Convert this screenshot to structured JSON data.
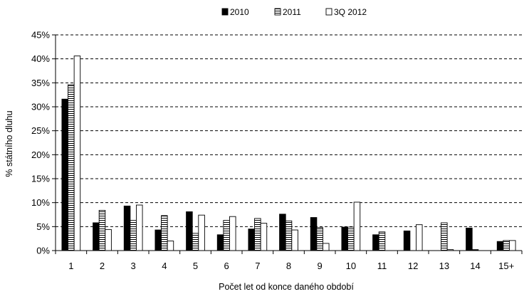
{
  "chart_data": {
    "type": "bar",
    "title": "",
    "xlabel": "Počet let od konce daného období",
    "ylabel": "% státního dluhu",
    "ylim": [
      0,
      45
    ],
    "y_ticks": [
      "0%",
      "5%",
      "10%",
      "15%",
      "20%",
      "25%",
      "30%",
      "35%",
      "40%",
      "45%"
    ],
    "grid": true,
    "legend_position": "top",
    "categories": [
      "1",
      "2",
      "3",
      "4",
      "5",
      "6",
      "7",
      "8",
      "9",
      "10",
      "11",
      "12",
      "13",
      "14",
      "15+"
    ],
    "series": [
      {
        "name": "2010",
        "pattern": "solid-black",
        "values": [
          31.6,
          5.8,
          9.3,
          4.3,
          8.1,
          3.3,
          4.5,
          7.6,
          6.9,
          4.9,
          3.3,
          4.1,
          0,
          4.7,
          1.9
        ]
      },
      {
        "name": "2011",
        "pattern": "horizontal-stripes",
        "values": [
          34.6,
          8.4,
          6.3,
          7.3,
          3.6,
          6.3,
          6.7,
          6.2,
          4.8,
          4.9,
          3.9,
          0,
          5.8,
          0.2,
          2.1
        ]
      },
      {
        "name": "3Q 2012",
        "pattern": "white",
        "values": [
          40.6,
          4.4,
          9.5,
          2.0,
          7.4,
          7.1,
          5.7,
          4.3,
          1.5,
          10.1,
          0,
          5.4,
          0.2,
          0,
          2.1
        ]
      }
    ]
  }
}
